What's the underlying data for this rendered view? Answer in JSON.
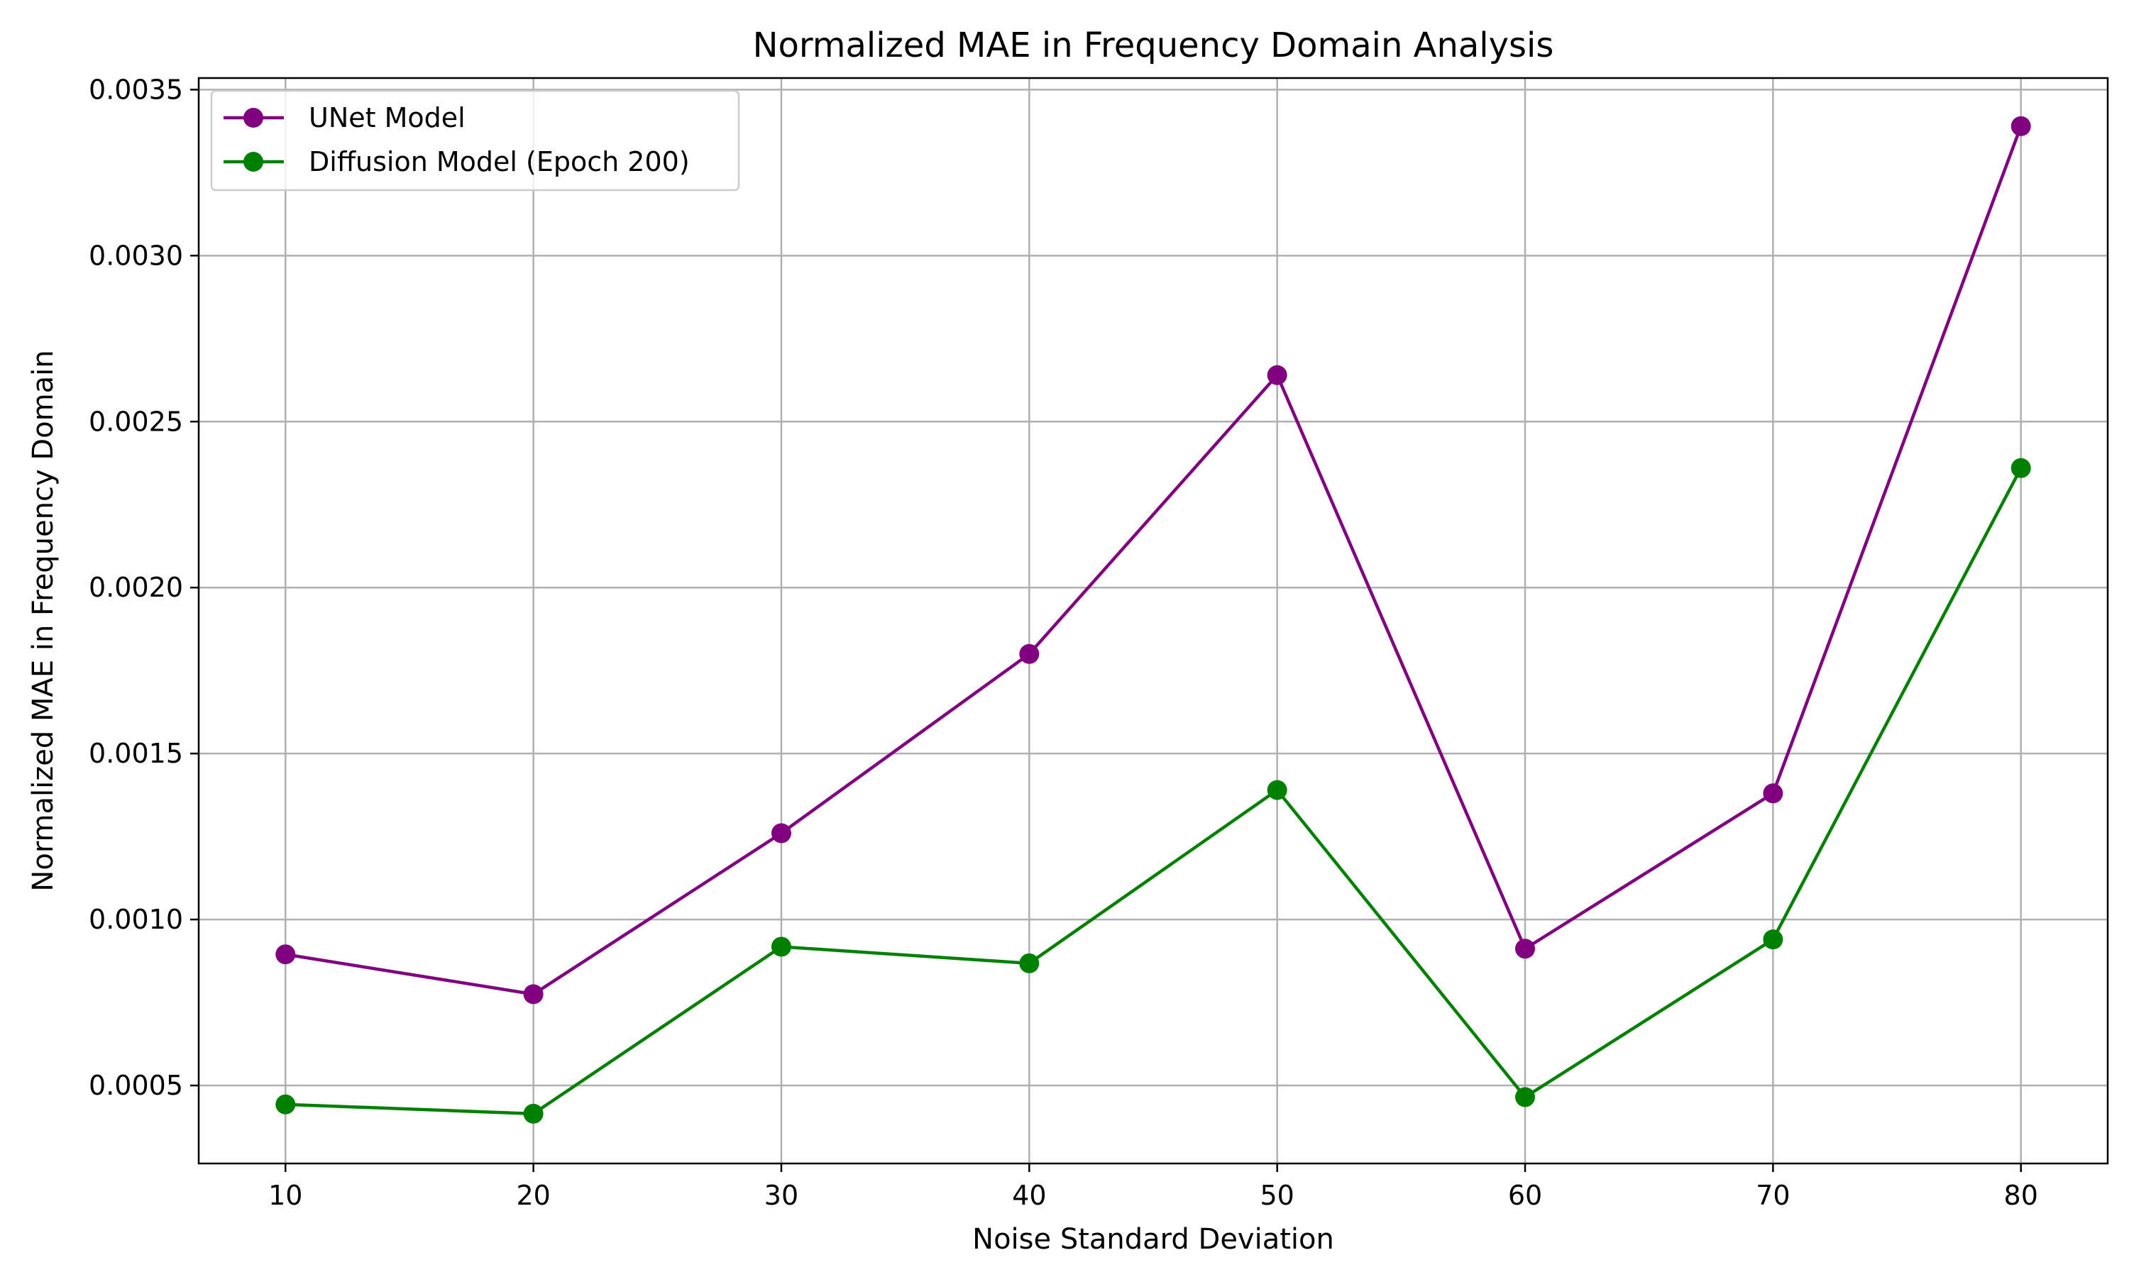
{
  "chart_data": {
    "type": "line",
    "title": "Normalized MAE in Frequency Domain Analysis",
    "xlabel": "Noise Standard Deviation",
    "ylabel": "Normalized MAE in Frequency Domain",
    "x": [
      10,
      20,
      30,
      40,
      50,
      60,
      70,
      80
    ],
    "xticks": [
      10,
      20,
      30,
      40,
      50,
      60,
      70,
      80
    ],
    "xtick_labels": [
      "10",
      "20",
      "30",
      "40",
      "50",
      "60",
      "70",
      "80"
    ],
    "yticks": [
      0.0005,
      0.001,
      0.0015,
      0.002,
      0.0025,
      0.003,
      0.0035
    ],
    "ytick_labels": [
      "0.0005",
      "0.0010",
      "0.0015",
      "0.0020",
      "0.0025",
      "0.0030",
      "0.0035"
    ],
    "xlim": [
      6.5,
      83.5
    ],
    "ylim": [
      0.000265,
      0.003535
    ],
    "grid": true,
    "legend_position": "top-left",
    "series": [
      {
        "name": "UNet Model",
        "color": "#800080",
        "marker": "circle",
        "values": [
          0.000895,
          0.000775,
          0.00126,
          0.0018,
          0.00264,
          0.000912,
          0.00138,
          0.00339
        ]
      },
      {
        "name": "Diffusion Model (Epoch 200)",
        "color": "#008000",
        "marker": "circle",
        "values": [
          0.000443,
          0.000415,
          0.000918,
          0.000868,
          0.00139,
          0.000465,
          0.00094,
          0.00236
        ]
      }
    ]
  }
}
